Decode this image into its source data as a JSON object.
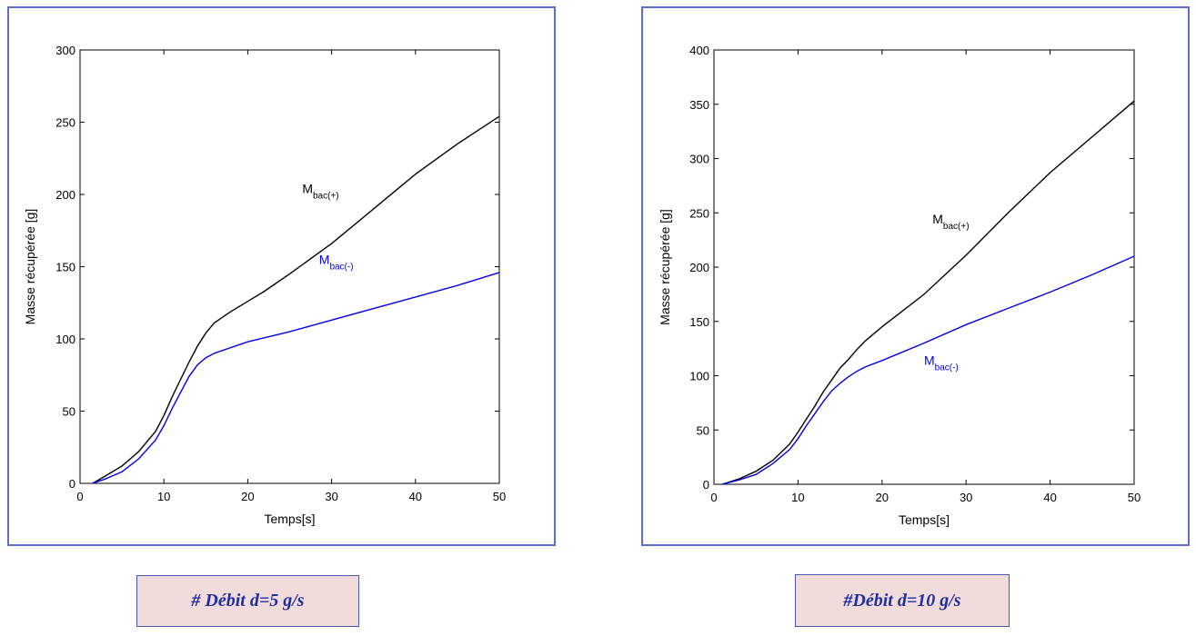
{
  "chart_data": [
    {
      "type": "line",
      "xlabel": "Temps[s]",
      "ylabel": "Masse récupérée [g]",
      "xlim": [
        0,
        50
      ],
      "ylim": [
        0,
        300
      ],
      "xticks": [
        0,
        10,
        20,
        30,
        40,
        50
      ],
      "yticks": [
        0,
        50,
        100,
        150,
        200,
        250,
        300
      ],
      "grid": false,
      "series": [
        {
          "color": "#000000",
          "x": [
            1.5,
            3,
            5,
            7,
            9,
            10,
            11,
            12,
            13,
            14,
            15,
            16,
            17,
            18,
            20,
            22,
            25,
            30,
            35,
            40,
            45,
            50
          ],
          "y": [
            0,
            5,
            12,
            22,
            36,
            47,
            60,
            72,
            84,
            95,
            104,
            111,
            115,
            119,
            126,
            133,
            145,
            166,
            190,
            214,
            235,
            254
          ]
        },
        {
          "color": "#0000ee",
          "x": [
            1.5,
            3,
            5,
            7,
            9,
            10,
            11,
            12,
            13,
            14,
            15,
            16,
            17,
            18,
            20,
            25,
            30,
            35,
            40,
            45,
            50
          ],
          "y": [
            0,
            3,
            8,
            17,
            30,
            40,
            52,
            63,
            74,
            82,
            87,
            90,
            92,
            94,
            98,
            105,
            113,
            121,
            129,
            137,
            146
          ]
        }
      ],
      "annotations": [
        {
          "main": "M",
          "sub": "bac(+)",
          "color": "#000000",
          "x": 26.5,
          "y": 201
        },
        {
          "main": "M",
          "sub": "bac(-)",
          "color": "#0000ee",
          "x": 28.5,
          "y": 152
        }
      ]
    },
    {
      "type": "line",
      "xlabel": "Temps[s]",
      "ylabel": "Masse récupérée [g]",
      "xlim": [
        0,
        50
      ],
      "ylim": [
        0,
        400
      ],
      "xticks": [
        0,
        10,
        20,
        30,
        40,
        50
      ],
      "yticks": [
        0,
        50,
        100,
        150,
        200,
        250,
        300,
        350,
        400
      ],
      "grid": false,
      "series": [
        {
          "color": "#000000",
          "x": [
            1,
            3,
            5,
            7,
            9,
            10,
            11,
            12,
            13,
            14,
            15,
            16,
            17,
            18,
            20,
            25,
            30,
            35,
            40,
            45,
            50
          ],
          "y": [
            0,
            5,
            12,
            22,
            37,
            48,
            60,
            72,
            85,
            96,
            107,
            115,
            124,
            132,
            145,
            175,
            211,
            250,
            287,
            320,
            353
          ]
        },
        {
          "color": "#0000ee",
          "x": [
            1,
            3,
            5,
            7,
            9,
            10,
            11,
            12,
            13,
            14,
            15,
            16,
            17,
            18,
            20,
            25,
            30,
            35,
            40,
            45,
            50
          ],
          "y": [
            0,
            4,
            9,
            19,
            32,
            42,
            54,
            65,
            76,
            86,
            93,
            99,
            104,
            108,
            114,
            130,
            147,
            162,
            177,
            193,
            210
          ]
        }
      ],
      "annotations": [
        {
          "main": "M",
          "sub": "bac(+)",
          "color": "#000000",
          "x": 26,
          "y": 240
        },
        {
          "main": "M",
          "sub": "bac(-)",
          "color": "#0000ee",
          "x": 25,
          "y": 110
        }
      ]
    }
  ],
  "captions": [
    {
      "text": "# Débit d=5 g/s"
    },
    {
      "text": "#Débit d=10 g/s"
    }
  ]
}
